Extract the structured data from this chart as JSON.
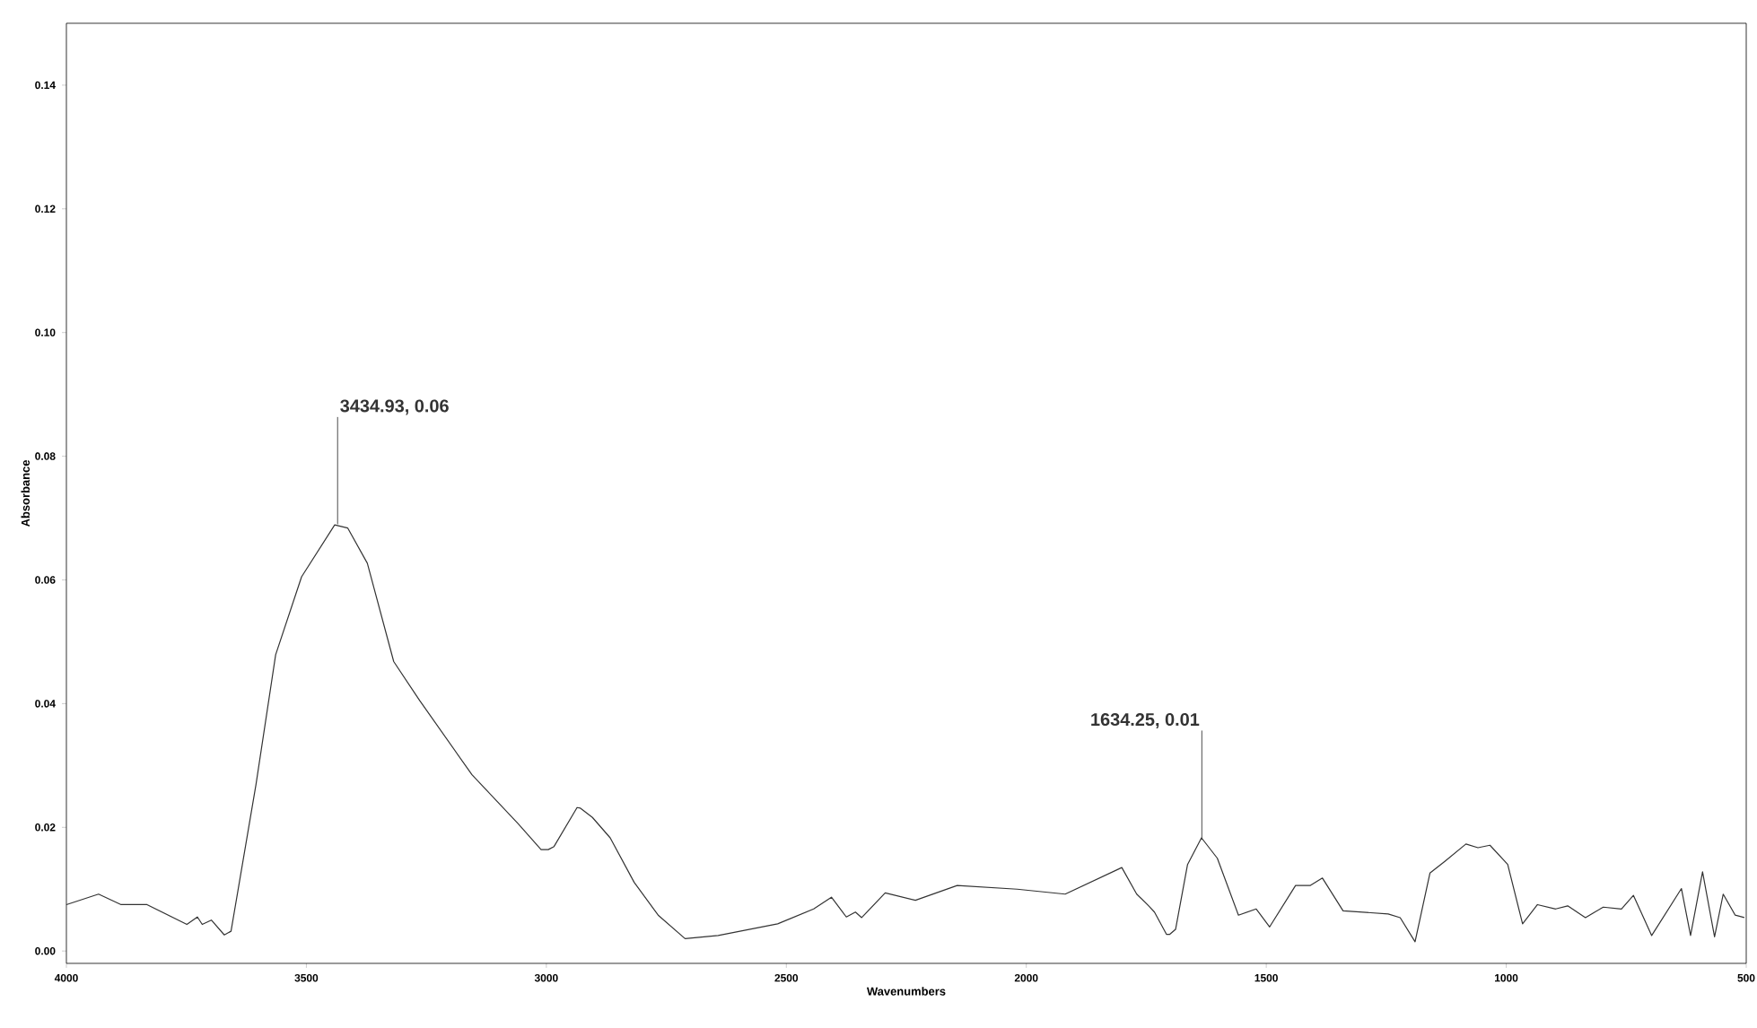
{
  "chart_data": {
    "type": "line",
    "xlabel": "Wavenumbers",
    "ylabel": "Absorbance",
    "xlim": [
      4000,
      500
    ],
    "ylim": [
      -0.002,
      0.15
    ],
    "xticks": [
      4000,
      3500,
      3000,
      2500,
      2000,
      1500,
      1000,
      500
    ],
    "yticks": [
      {
        "value": 0,
        "label": "0.00"
      },
      {
        "value": 0.02,
        "label": "0.02"
      },
      {
        "value": 0.04,
        "label": "0.04"
      },
      {
        "value": 0.06,
        "label": "0.06"
      },
      {
        "value": 0.08,
        "label": "0.08"
      },
      {
        "value": 0.1,
        "label": "0.10"
      },
      {
        "value": 0.12,
        "label": "0.12"
      },
      {
        "value": 0.14,
        "label": "0.14"
      }
    ],
    "marker": "none",
    "line_style": "solid",
    "series": [
      {
        "color": "#333333",
        "x": [
          4000,
          3933,
          3886,
          3832,
          3749,
          3727,
          3717,
          3698,
          3671,
          3657,
          3605,
          3564,
          3510,
          3441,
          3414,
          3373,
          3318,
          3264,
          3155,
          3059,
          3011,
          2996,
          2984,
          2936,
          2929,
          2904,
          2867,
          2817,
          2767,
          2711,
          2642,
          2518,
          2443,
          2406,
          2375,
          2356,
          2343,
          2294,
          2231,
          2144,
          2019,
          1919,
          1801,
          1770,
          1745,
          1733,
          1708,
          1701,
          1689,
          1664,
          1635,
          1602,
          1558,
          1521,
          1493,
          1439,
          1408,
          1383,
          1340,
          1246,
          1221,
          1190,
          1159,
          1128,
          1084,
          1059,
          1034,
          997,
          966,
          935,
          897,
          872,
          835,
          798,
          760,
          735,
          697,
          635,
          616,
          591,
          566,
          548,
          523,
          504
        ],
        "values": [
          0.0075,
          0.0092,
          0.0075,
          0.0075,
          0.0043,
          0.0055,
          0.0043,
          0.005,
          0.0026,
          0.0032,
          0.0269,
          0.0479,
          0.0605,
          0.0689,
          0.0684,
          0.0627,
          0.0468,
          0.0405,
          0.0285,
          0.0206,
          0.0164,
          0.0164,
          0.0169,
          0.0232,
          0.0231,
          0.0216,
          0.0183,
          0.0111,
          0.0058,
          0.002,
          0.0025,
          0.0044,
          0.0068,
          0.0087,
          0.0055,
          0.0063,
          0.0054,
          0.0094,
          0.0082,
          0.0106,
          0.01,
          0.0092,
          0.0135,
          0.0092,
          0.0073,
          0.0063,
          0.0027,
          0.0027,
          0.0035,
          0.014,
          0.0183,
          0.015,
          0.0058,
          0.0068,
          0.0039,
          0.0106,
          0.0106,
          0.0118,
          0.0065,
          0.006,
          0.0054,
          0.0015,
          0.0126,
          0.0145,
          0.0173,
          0.0167,
          0.0171,
          0.014,
          0.0044,
          0.0075,
          0.0068,
          0.0073,
          0.0054,
          0.0071,
          0.0068,
          0.009,
          0.0025,
          0.0101,
          0.0025,
          0.0128,
          0.0023,
          0.0092,
          0.0058,
          0.0054
        ]
      }
    ],
    "annotations": [
      {
        "text": "3434.93, 0.06",
        "x": 3434.93,
        "y": 0.069
      },
      {
        "text": "1634.25, 0.01",
        "x": 1634.25,
        "y": 0.0183
      }
    ]
  }
}
